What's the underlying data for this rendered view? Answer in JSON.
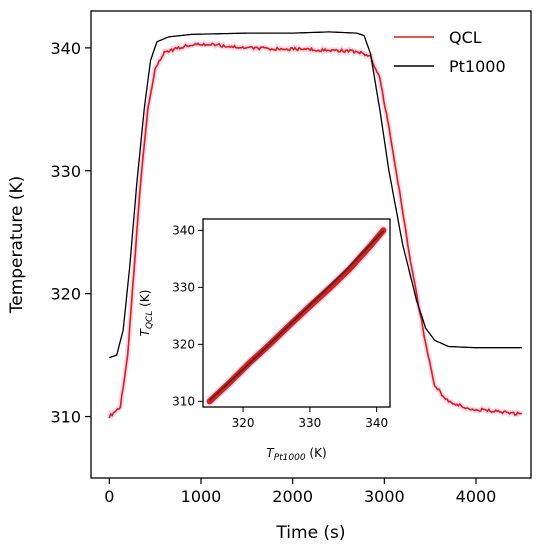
{
  "chart_data": [
    {
      "type": "line",
      "xlabel": "Time (s)",
      "ylabel": "Temperature (K)",
      "xlim": [
        -200,
        4600
      ],
      "ylim": [
        305,
        343
      ],
      "xticks": [
        "0",
        "1000",
        "2000",
        "3000",
        "4000"
      ],
      "yticks": [
        "310",
        "320",
        "330",
        "340"
      ],
      "legend_position": "top-right",
      "series": [
        {
          "name": "QCL",
          "color": "#d62018",
          "points": [
            [
              0,
              310.0
            ],
            [
              120,
              310.8
            ],
            [
              200,
              315
            ],
            [
              270,
              322
            ],
            [
              340,
              329
            ],
            [
              420,
              335
            ],
            [
              500,
              338.3
            ],
            [
              600,
              339.6
            ],
            [
              800,
              340.1
            ],
            [
              1000,
              340.3
            ],
            [
              1200,
              340.2
            ],
            [
              1500,
              340.0
            ],
            [
              1800,
              339.9
            ],
            [
              2100,
              339.9
            ],
            [
              2400,
              339.8
            ],
            [
              2700,
              339.7
            ],
            [
              2850,
              339.3
            ],
            [
              2950,
              337.5
            ],
            [
              3050,
              333.5
            ],
            [
              3150,
              329
            ],
            [
              3300,
              322
            ],
            [
              3450,
              316
            ],
            [
              3550,
              312.5
            ],
            [
              3700,
              311.2
            ],
            [
              3900,
              310.7
            ],
            [
              4200,
              310.4
            ],
            [
              4500,
              310.2
            ]
          ]
        },
        {
          "name": "Pt1000",
          "color": "#000000",
          "points": [
            [
              0,
              314.8
            ],
            [
              80,
              315.0
            ],
            [
              150,
              317
            ],
            [
              220,
              322
            ],
            [
              300,
              329
            ],
            [
              380,
              335
            ],
            [
              450,
              339
            ],
            [
              520,
              340.5
            ],
            [
              650,
              340.9
            ],
            [
              900,
              341.1
            ],
            [
              1500,
              341.2
            ],
            [
              2000,
              341.2
            ],
            [
              2400,
              341.3
            ],
            [
              2700,
              341.2
            ],
            [
              2780,
              341.0
            ],
            [
              2850,
              339.5
            ],
            [
              2950,
              335
            ],
            [
              3050,
              330
            ],
            [
              3200,
              324
            ],
            [
              3350,
              319.5
            ],
            [
              3450,
              317.2
            ],
            [
              3550,
              316.2
            ],
            [
              3700,
              315.7
            ],
            [
              4000,
              315.6
            ],
            [
              4500,
              315.6
            ]
          ]
        }
      ]
    },
    {
      "type": "scatter",
      "xlabel": "T_Pt1000 (K)",
      "ylabel": "T_QCL (K)",
      "xlim": [
        314,
        342
      ],
      "ylim": [
        309,
        342
      ],
      "xticks": [
        "320",
        "330",
        "340"
      ],
      "yticks": [
        "310",
        "320",
        "330",
        "340"
      ],
      "series": [
        {
          "name": "",
          "color": "#d62018",
          "points": [
            [
              315,
              310
            ],
            [
              318,
              313.3
            ],
            [
              321,
              316.8
            ],
            [
              324,
              320
            ],
            [
              327,
              323.4
            ],
            [
              330,
              326.7
            ],
            [
              333,
              329.9
            ],
            [
              336,
              333.3
            ],
            [
              339,
              337.2
            ],
            [
              341,
              340
            ]
          ]
        },
        {
          "name": "",
          "color": "#2c2c2c",
          "points": [
            [
              315,
              310.2
            ],
            [
              320,
              315.6
            ],
            [
              325,
              321.2
            ],
            [
              330,
              326.9
            ],
            [
              335,
              332.5
            ],
            [
              340,
              338.7
            ],
            [
              341,
              339.9
            ]
          ]
        }
      ]
    }
  ]
}
